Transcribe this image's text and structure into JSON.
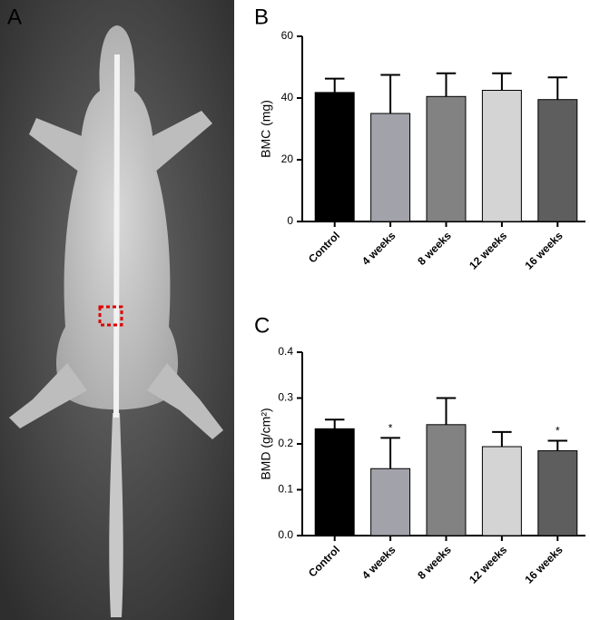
{
  "image_panel": {
    "label": "A"
  },
  "chart_data": [
    {
      "type": "bar",
      "panel_label": "B",
      "y_label": "BMC (mg)",
      "categories": [
        "Control",
        "4 weeks",
        "8 weeks",
        "12 weeks",
        "16 weeks"
      ],
      "values": [
        41.8,
        35.0,
        40.5,
        42.5,
        39.5
      ],
      "errors": [
        4.5,
        12.5,
        7.5,
        5.5,
        7.2
      ],
      "colors": [
        "#000000",
        "#a2a2aa",
        "#828282",
        "#d4d4d4",
        "#5e5e5e"
      ],
      "ylim": [
        0,
        60
      ],
      "yticks": [
        0,
        20,
        40,
        60
      ]
    },
    {
      "type": "bar",
      "panel_label": "C",
      "y_label": "BMD (g/cm²)",
      "categories": [
        "Control",
        "4 weeks",
        "8 weeks",
        "12 weeks",
        "16 weeks"
      ],
      "values": [
        0.233,
        0.146,
        0.242,
        0.194,
        0.185
      ],
      "errors": [
        0.02,
        0.067,
        0.058,
        0.032,
        0.022
      ],
      "significance": [
        null,
        "*",
        null,
        null,
        "*"
      ],
      "colors": [
        "#000000",
        "#a2a2aa",
        "#828282",
        "#d4d4d4",
        "#5e5e5e"
      ],
      "ylim": [
        0,
        0.4
      ],
      "yticks": [
        {
          "value": 0,
          "label": "0.0"
        },
        0.1,
        0.2,
        0.3,
        0.4
      ]
    }
  ]
}
